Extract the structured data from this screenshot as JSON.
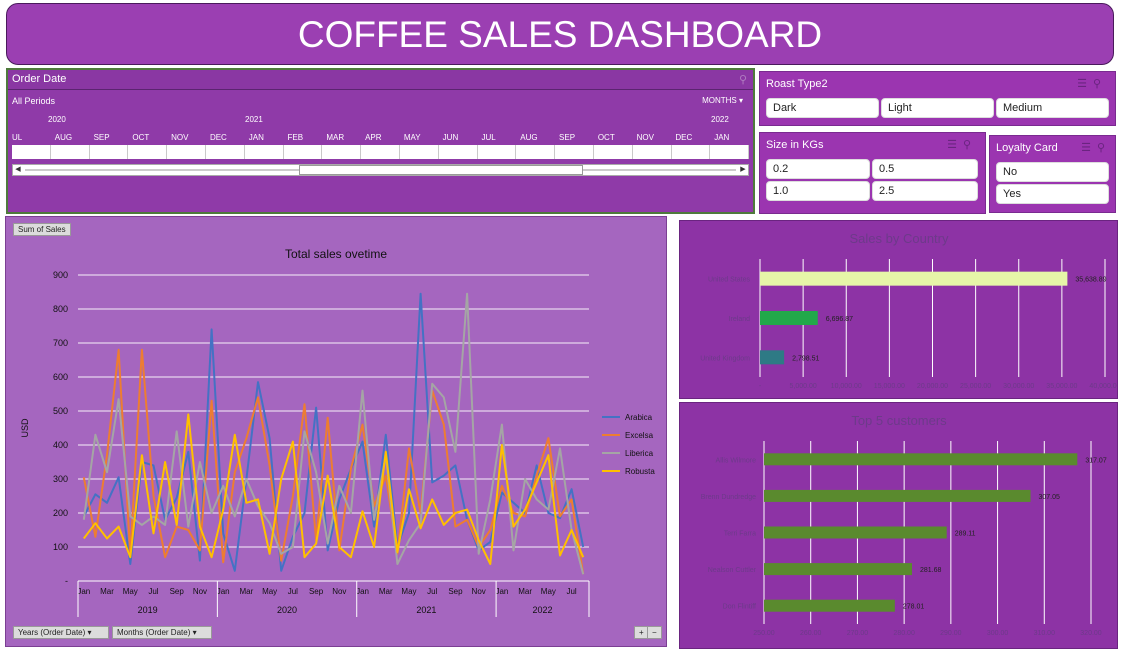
{
  "title": "COFFEE SALES DASHBOARD",
  "timeline": {
    "header": "Order Date",
    "periods_label": "All Periods",
    "unit_label": "MONTHS",
    "years": [
      {
        "label": "2020",
        "x": 44
      },
      {
        "label": "2021",
        "x": 237
      },
      {
        "label": "2022",
        "x": 703
      }
    ],
    "months": [
      "JUL",
      "AUG",
      "SEP",
      "OCT",
      "NOV",
      "DEC",
      "JAN",
      "FEB",
      "MAR",
      "APR",
      "MAY",
      "JUN",
      "JUL",
      "AUG",
      "SEP",
      "OCT",
      "NOV",
      "DEC",
      "JAN"
    ]
  },
  "roast": {
    "title": "Roast Type2",
    "options": [
      "Dark",
      "Light",
      "Medium"
    ]
  },
  "size": {
    "title": "Size in KGs",
    "options": [
      "0.2",
      "0.5",
      "1.0",
      "2.5"
    ]
  },
  "loyalty": {
    "title": "Loyalty Card",
    "options": [
      "No",
      "Yes"
    ]
  },
  "line_chart": {
    "field_button": "Sum of Sales",
    "filter_years": "Years (Order Date)",
    "filter_months": "Months (Order Date)",
    "zoom_in": "+",
    "zoom_out": "−"
  },
  "colors": {
    "Arabica": "#4472c4",
    "Excelsa": "#ed7d31",
    "Liberica": "#a5a5a5",
    "Robusta": "#ffc000",
    "us_bar": "#e6f5a8",
    "ireland_bar": "#22a84a",
    "uk_bar": "#2e7a85",
    "customer_bar": "#5a8a2e"
  },
  "chart_data": [
    {
      "type": "line",
      "title": "Total sales ovetime",
      "xlabel": "",
      "ylabel": "USD",
      "ylim": [
        0,
        900
      ],
      "yticks": [
        "-",
        "100",
        "200",
        "300",
        "400",
        "500",
        "600",
        "700",
        "800",
        "900"
      ],
      "month_labels": [
        "Jan",
        "Mar",
        "May",
        "Jul",
        "Sep",
        "Nov",
        "Jan",
        "Mar",
        "May",
        "Jul",
        "Sep",
        "Nov",
        "Jan",
        "Mar",
        "May",
        "Jul",
        "Sep",
        "Nov",
        "Jan",
        "Mar",
        "May",
        "Jul"
      ],
      "year_labels": [
        "2019",
        "2020",
        "2021",
        "2022"
      ],
      "legend_position": "right",
      "x_count": 44,
      "series": [
        {
          "name": "Arabica",
          "values": [
            190,
            255,
            230,
            305,
            50,
            350,
            340,
            180,
            245,
            380,
            60,
            740,
            140,
            30,
            300,
            585,
            420,
            30,
            130,
            200,
            510,
            90,
            240,
            330,
            410,
            160,
            430,
            100,
            200,
            845,
            290,
            310,
            340,
            180,
            90,
            115,
            260,
            230,
            200,
            340,
            200,
            185,
            270,
            100
          ]
        },
        {
          "name": "Excelsa",
          "values": [
            305,
            130,
            370,
            680,
            75,
            680,
            250,
            70,
            160,
            150,
            90,
            530,
            55,
            320,
            420,
            540,
            340,
            60,
            250,
            520,
            120,
            480,
            90,
            330,
            460,
            220,
            310,
            80,
            390,
            200,
            560,
            460,
            160,
            180,
            100,
            150,
            280,
            200,
            190,
            310,
            420,
            190,
            240,
            20
          ]
        },
        {
          "name": "Liberica",
          "values": [
            180,
            430,
            320,
            535,
            190,
            165,
            190,
            165,
            440,
            160,
            350,
            200,
            280,
            190,
            300,
            220,
            170,
            80,
            100,
            440,
            320,
            110,
            280,
            200,
            560,
            180,
            370,
            50,
            120,
            170,
            580,
            540,
            380,
            845,
            80,
            240,
            460,
            90,
            300,
            240,
            210,
            390,
            150,
            20
          ]
        },
        {
          "name": "Robusta",
          "values": [
            125,
            170,
            125,
            160,
            70,
            370,
            140,
            350,
            165,
            490,
            160,
            70,
            210,
            430,
            230,
            240,
            80,
            300,
            410,
            70,
            110,
            310,
            100,
            70,
            205,
            100,
            380,
            85,
            270,
            155,
            240,
            165,
            200,
            210,
            120,
            50,
            400,
            160,
            210,
            290,
            370,
            75,
            150,
            70
          ]
        }
      ]
    },
    {
      "type": "bar",
      "title": "Sales by Country",
      "categories": [
        "United States",
        "Ireland",
        "United Kingdom"
      ],
      "values": [
        35638.89,
        6696.87,
        2798.51
      ],
      "value_labels": [
        "35,638.89",
        "6,696.87",
        "2,798.51"
      ],
      "xlim": [
        0,
        40000
      ],
      "xticks": [
        "-",
        "5,000.00",
        "10,000.00",
        "15,000.00",
        "20,000.00",
        "25,000.00",
        "30,000.00",
        "35,000.00",
        "40,000.00"
      ]
    },
    {
      "type": "bar",
      "title": "Top 5 customers",
      "categories": [
        "Allis Wilmore",
        "Brenn Dundredge",
        "Terri Farra",
        "Nealson Cuttler",
        "Don Flintiff"
      ],
      "values": [
        317.07,
        307.05,
        289.11,
        281.68,
        278.01
      ],
      "value_labels": [
        "317.07",
        "307.05",
        "289.11",
        "281.68",
        "278.01"
      ],
      "xlim": [
        250,
        320
      ],
      "xticks": [
        "250.00",
        "260.00",
        "270.00",
        "280.00",
        "290.00",
        "300.00",
        "310.00",
        "320.00"
      ]
    }
  ]
}
